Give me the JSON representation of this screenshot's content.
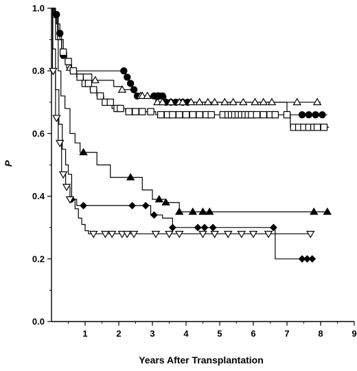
{
  "chart_data": {
    "type": "line",
    "subtype": "kaplan-meier step curves with censoring markers",
    "title": "",
    "xlabel": "Years After Transplantation",
    "ylabel": "P",
    "xlim": [
      0,
      9
    ],
    "ylim": [
      0.0,
      1.0
    ],
    "xticks": [
      "1",
      "2",
      "3",
      "4",
      "5",
      "6",
      "7",
      "8",
      "9"
    ],
    "yticks": [
      "0.0",
      "0.2",
      "0.4",
      "0.6",
      "0.8",
      "1.0"
    ],
    "grid": false,
    "legend": "none",
    "series": [
      {
        "marker": "filled-circle",
        "color": "#000000",
        "fill": "#000000",
        "steps": [
          [
            0,
            1.0
          ],
          [
            0.1,
            0.98
          ],
          [
            0.2,
            0.92
          ],
          [
            0.3,
            0.85
          ],
          [
            0.45,
            0.82
          ],
          [
            0.6,
            0.8
          ],
          [
            2.2,
            0.78
          ],
          [
            2.3,
            0.76
          ],
          [
            2.4,
            0.74
          ],
          [
            2.5,
            0.72
          ],
          [
            3.4,
            0.7
          ],
          [
            3.5,
            0.7
          ],
          [
            7.0,
            0.66
          ],
          [
            8.2,
            0.66
          ]
        ],
        "censored_x": [
          0.15,
          0.25,
          0.35,
          2.15,
          2.25,
          2.35,
          2.45,
          2.55,
          3.05,
          3.15,
          3.2,
          3.3,
          3.4,
          3.55,
          3.7,
          3.9,
          4.05,
          7.45,
          7.65,
          7.85,
          8.05
        ]
      },
      {
        "marker": "open-triangle-up",
        "color": "#000000",
        "fill": "#ffffff",
        "steps": [
          [
            0,
            1.0
          ],
          [
            0.08,
            0.97
          ],
          [
            0.18,
            0.9
          ],
          [
            0.3,
            0.84
          ],
          [
            0.45,
            0.81
          ],
          [
            0.6,
            0.79
          ],
          [
            1.2,
            0.77
          ],
          [
            1.85,
            0.75
          ],
          [
            2.1,
            0.74
          ],
          [
            2.5,
            0.72
          ],
          [
            2.8,
            0.72
          ],
          [
            3.1,
            0.7
          ],
          [
            8.0,
            0.7
          ]
        ],
        "censored_x": [
          0.55,
          1.3,
          2.1,
          2.65,
          2.7,
          2.85,
          3.15,
          3.3,
          3.55,
          3.8,
          3.9,
          4.15,
          4.4,
          4.65,
          4.85,
          5.15,
          5.4,
          5.7,
          6.05,
          6.3,
          6.55,
          7.3,
          7.9
        ]
      },
      {
        "marker": "open-square",
        "color": "#000000",
        "fill": "#ffffff",
        "steps": [
          [
            0,
            1.0
          ],
          [
            0.05,
            0.98
          ],
          [
            0.15,
            0.95
          ],
          [
            0.25,
            0.9
          ],
          [
            0.35,
            0.86
          ],
          [
            0.45,
            0.83
          ],
          [
            0.55,
            0.8
          ],
          [
            0.75,
            0.78
          ],
          [
            0.95,
            0.76
          ],
          [
            1.15,
            0.74
          ],
          [
            1.35,
            0.72
          ],
          [
            1.55,
            0.7
          ],
          [
            1.8,
            0.68
          ],
          [
            2.2,
            0.67
          ],
          [
            2.8,
            0.67
          ],
          [
            3.1,
            0.66
          ],
          [
            3.4,
            0.66
          ],
          [
            5.4,
            0.66
          ],
          [
            7.1,
            0.62
          ],
          [
            8.25,
            0.62
          ]
        ],
        "censored_x": [
          0.35,
          0.5,
          0.65,
          0.85,
          1.0,
          1.1,
          1.25,
          1.45,
          1.6,
          1.75,
          1.95,
          2.05,
          2.3,
          2.5,
          2.7,
          2.95,
          3.25,
          3.45,
          3.6,
          3.8,
          4.0,
          4.2,
          4.4,
          4.6,
          4.75,
          5.1,
          5.25,
          5.35,
          5.45,
          5.55,
          5.65,
          5.75,
          5.85,
          5.95,
          6.1,
          6.3,
          6.5,
          6.65,
          7.0,
          7.2,
          7.35,
          7.5,
          7.65,
          7.8,
          7.9,
          8.1
        ]
      },
      {
        "marker": "filled-triangle-up",
        "color": "#000000",
        "fill": "#000000",
        "steps": [
          [
            0,
            1.0
          ],
          [
            0.12,
            0.9
          ],
          [
            0.2,
            0.8
          ],
          [
            0.28,
            0.72
          ],
          [
            0.4,
            0.68
          ],
          [
            0.55,
            0.6
          ],
          [
            0.7,
            0.57
          ],
          [
            0.85,
            0.54
          ],
          [
            1.35,
            0.5
          ],
          [
            1.75,
            0.46
          ],
          [
            2.7,
            0.42
          ],
          [
            3.0,
            0.39
          ],
          [
            3.4,
            0.38
          ],
          [
            3.8,
            0.35
          ],
          [
            8.2,
            0.35
          ]
        ],
        "censored_x": [
          0.95,
          2.35,
          3.2,
          3.4,
          3.8,
          4.2,
          4.5,
          4.7,
          7.8,
          8.2
        ]
      },
      {
        "marker": "filled-diamond",
        "color": "#000000",
        "fill": "#000000",
        "steps": [
          [
            0,
            1.0
          ],
          [
            0.04,
            0.87
          ],
          [
            0.12,
            0.74
          ],
          [
            0.22,
            0.63
          ],
          [
            0.32,
            0.55
          ],
          [
            0.42,
            0.5
          ],
          [
            0.5,
            0.47
          ],
          [
            0.6,
            0.39
          ],
          [
            0.75,
            0.37
          ],
          [
            2.95,
            0.34
          ],
          [
            3.3,
            0.33
          ],
          [
            3.6,
            0.3
          ],
          [
            6.65,
            0.2
          ],
          [
            7.8,
            0.2
          ]
        ],
        "censored_x": [
          0.6,
          0.95,
          2.4,
          2.8,
          3.05,
          3.6,
          4.35,
          4.55,
          4.8,
          6.6,
          7.45,
          7.6,
          7.75
        ]
      },
      {
        "marker": "open-triangle-down",
        "color": "#000000",
        "fill": "#ffffff",
        "steps": [
          [
            0,
            1.0
          ],
          [
            0.03,
            0.8
          ],
          [
            0.12,
            0.65
          ],
          [
            0.2,
            0.57
          ],
          [
            0.3,
            0.47
          ],
          [
            0.42,
            0.43
          ],
          [
            0.55,
            0.39
          ],
          [
            0.7,
            0.36
          ],
          [
            0.8,
            0.33
          ],
          [
            0.9,
            0.31
          ],
          [
            1.0,
            0.29
          ],
          [
            1.1,
            0.28
          ],
          [
            7.7,
            0.28
          ]
        ],
        "censored_x": [
          0.05,
          0.15,
          0.25,
          0.35,
          0.45,
          0.55,
          1.25,
          1.6,
          1.8,
          2.1,
          2.25,
          2.45,
          3.1,
          3.5,
          3.8,
          4.5,
          4.85,
          5.25,
          5.65,
          6.0,
          6.45,
          7.7
        ]
      }
    ]
  }
}
